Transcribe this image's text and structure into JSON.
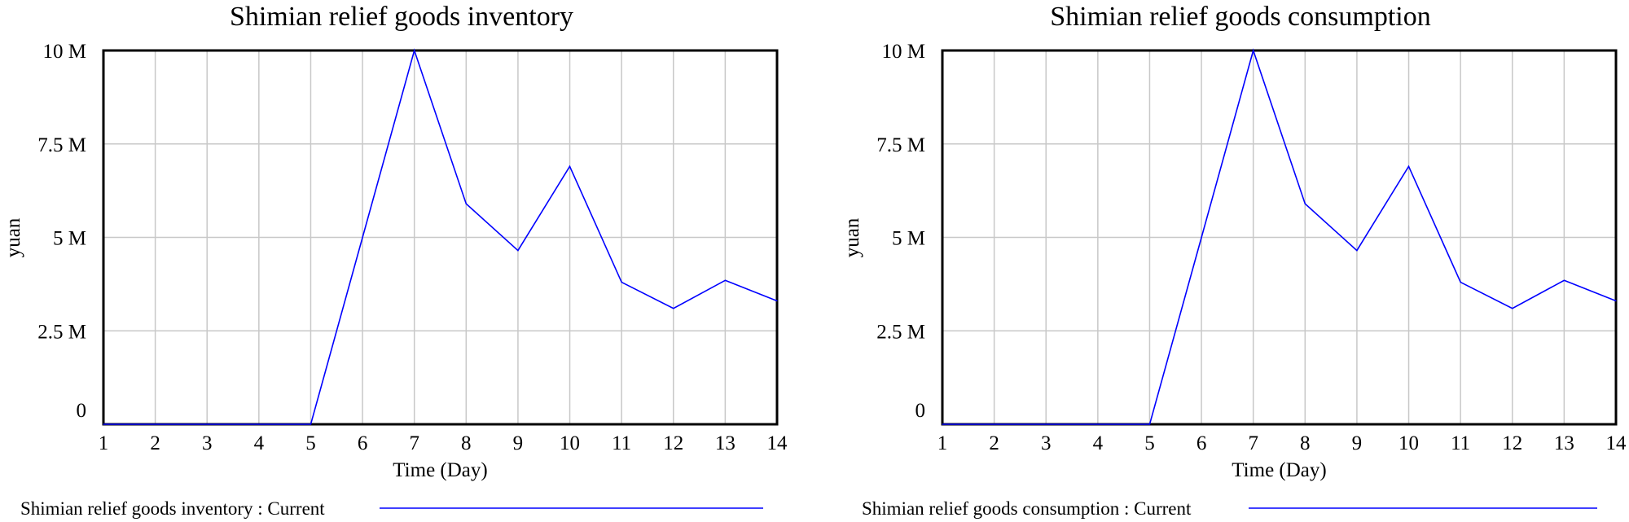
{
  "chart_data": [
    {
      "type": "line",
      "title": "Shimian relief goods inventory",
      "xlabel": "Time (Day)",
      "ylabel": "yuan",
      "x": [
        1,
        2,
        3,
        4,
        5,
        6,
        7,
        8,
        9,
        10,
        11,
        12,
        13,
        14
      ],
      "x_tick_labels": [
        "1",
        "2",
        "3",
        "4",
        "5",
        "6",
        "7",
        "8",
        "9",
        "10",
        "11",
        "12",
        "13",
        "14"
      ],
      "y_tick_labels": [
        "0",
        "2.5 M",
        "5 M",
        "7.5 M",
        "10 M"
      ],
      "y_ticks": [
        0,
        2500000,
        5000000,
        7500000,
        10000000
      ],
      "xlim": [
        1,
        14
      ],
      "ylim": [
        0,
        10000000
      ],
      "grid": true,
      "legend_position": "bottom-left",
      "series": [
        {
          "name": "Shimian relief goods inventory : Current",
          "color": "#0000ff",
          "values": [
            0,
            0,
            0,
            0,
            0,
            5000000,
            10000000,
            5900000,
            4650000,
            6900000,
            3800000,
            3100000,
            3850000,
            3300000
          ]
        }
      ]
    },
    {
      "type": "line",
      "title": "Shimian relief goods consumption",
      "xlabel": "Time (Day)",
      "ylabel": "yuan",
      "x": [
        1,
        2,
        3,
        4,
        5,
        6,
        7,
        8,
        9,
        10,
        11,
        12,
        13,
        14
      ],
      "x_tick_labels": [
        "1",
        "2",
        "3",
        "4",
        "5",
        "6",
        "7",
        "8",
        "9",
        "10",
        "11",
        "12",
        "13",
        "14"
      ],
      "y_tick_labels": [
        "0",
        "2.5 M",
        "5 M",
        "7.5 M",
        "10 M"
      ],
      "y_ticks": [
        0,
        2500000,
        5000000,
        7500000,
        10000000
      ],
      "xlim": [
        1,
        14
      ],
      "ylim": [
        0,
        10000000
      ],
      "grid": true,
      "legend_position": "bottom-left",
      "series": [
        {
          "name": "Shimian relief goods consumption : Current",
          "color": "#0000ff",
          "values": [
            0,
            0,
            0,
            0,
            0,
            5000000,
            10000000,
            5900000,
            4650000,
            6900000,
            3800000,
            3100000,
            3850000,
            3300000
          ]
        }
      ]
    }
  ]
}
